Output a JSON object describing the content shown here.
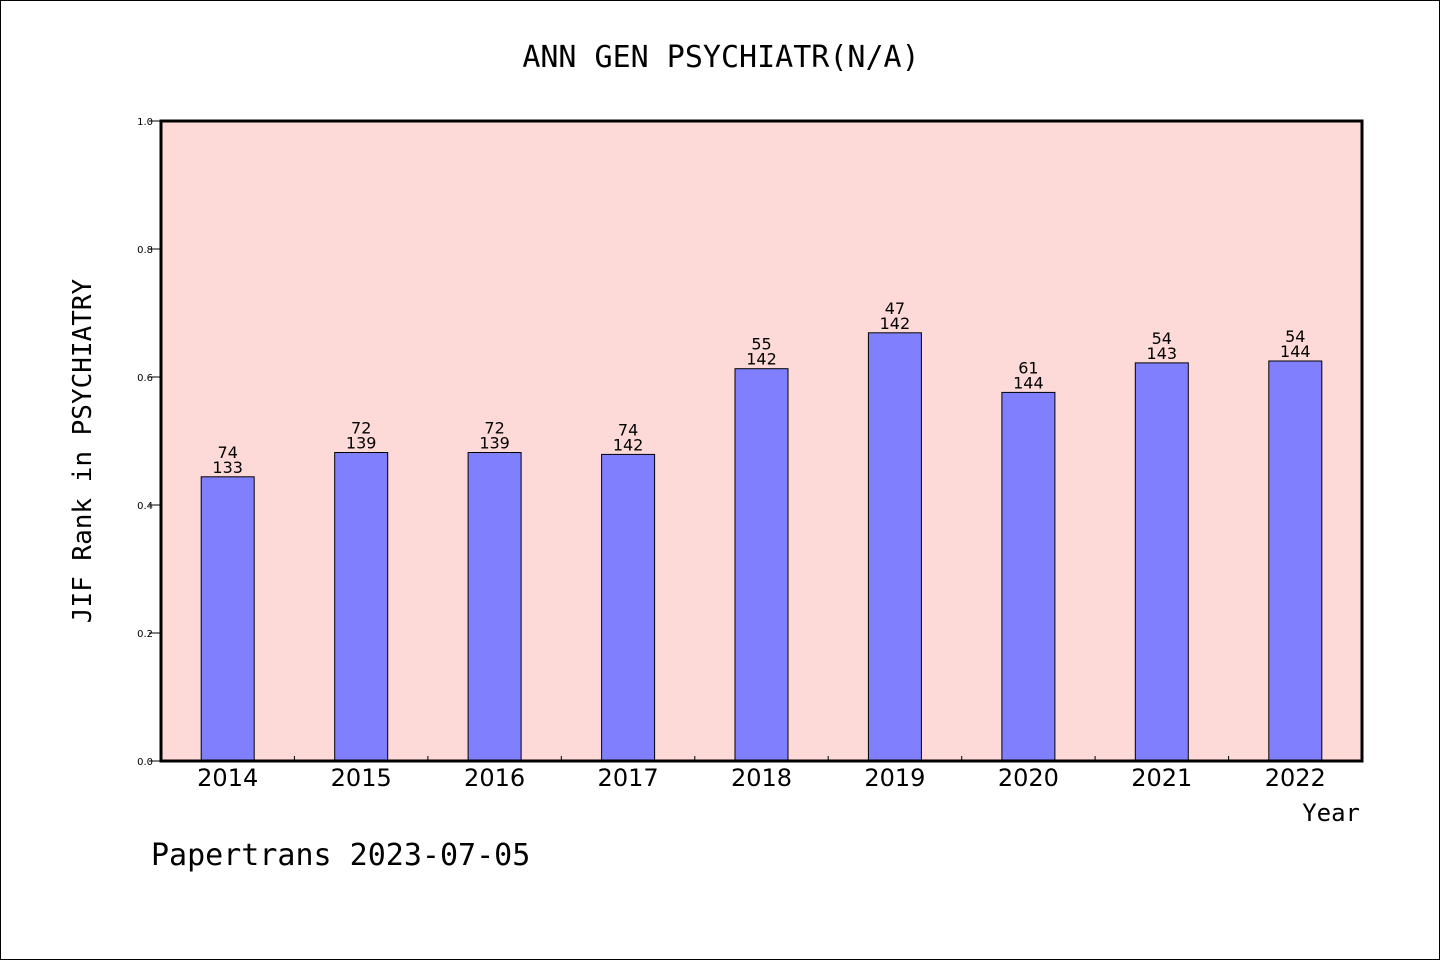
{
  "chart_data": {
    "type": "bar",
    "title": "ANN GEN PSYCHIATR(N/A)",
    "xlabel": "Year",
    "ylabel": "JIF Rank in PSYCHIATRY",
    "ylim": [
      0,
      1.0
    ],
    "yticks": [
      "0.0",
      "0.2",
      "0.4",
      "0.6",
      "0.8",
      "1.0"
    ],
    "categories": [
      "2014",
      "2015",
      "2016",
      "2017",
      "2018",
      "2019",
      "2020",
      "2021",
      "2022"
    ],
    "values": [
      0.444,
      0.482,
      0.482,
      0.479,
      0.613,
      0.669,
      0.576,
      0.622,
      0.625
    ],
    "labels_top": [
      "74",
      "72",
      "72",
      "74",
      "55",
      "47",
      "61",
      "54",
      "54"
    ],
    "labels_bottom": [
      "133",
      "139",
      "139",
      "142",
      "142",
      "142",
      "144",
      "143",
      "144"
    ],
    "grid": false,
    "colors": {
      "plot_background": "#FDDAD8",
      "bar_fill": "#8080FF",
      "bar_stroke": "#000000"
    }
  },
  "footer": "Papertrans 2023-07-05"
}
